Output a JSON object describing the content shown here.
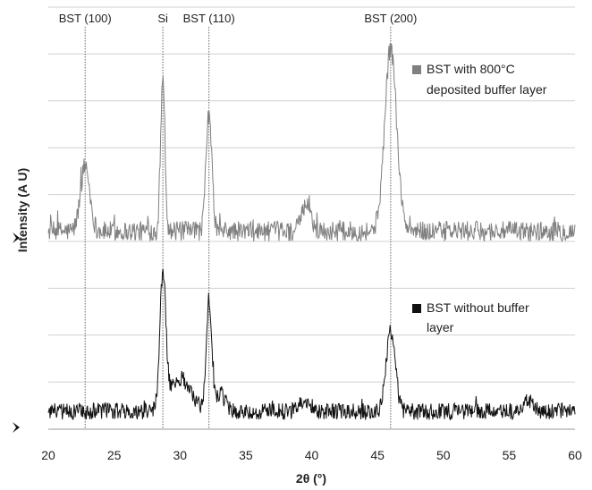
{
  "chart_data": {
    "type": "line",
    "title": "",
    "xlabel": "2θ (°)",
    "ylabel": "Intensity (A U)",
    "xlim": [
      20,
      60
    ],
    "xticks": [
      20,
      25,
      30,
      35,
      40,
      45,
      50,
      55,
      60
    ],
    "grid": true,
    "peak_labels": [
      {
        "label": "BST (100)",
        "x": 22.8
      },
      {
        "label": "Si",
        "x": 28.7
      },
      {
        "label": "BST (110)",
        "x": 32.2
      },
      {
        "label": "BST (200)",
        "x": 46.0
      }
    ],
    "baseline_markers": [
      "top-series-baseline",
      "bottom-series-baseline"
    ],
    "series": [
      {
        "name": "BST with 800°C deposited buffer layer",
        "color": "#808080",
        "baseline": 0.0,
        "noise": 0.055,
        "peaks": [
          {
            "x": 22.8,
            "height": 0.36,
            "width": 0.35
          },
          {
            "x": 28.7,
            "height": 0.86,
            "width": 0.16
          },
          {
            "x": 32.2,
            "height": 0.64,
            "width": 0.22
          },
          {
            "x": 39.6,
            "height": 0.14,
            "width": 0.35
          },
          {
            "x": 46.0,
            "height": 1.0,
            "width": 0.45
          }
        ]
      },
      {
        "name": "BST without buffer layer",
        "color": "#111111",
        "baseline": 0.0,
        "noise": 0.055,
        "peaks": [
          {
            "x": 28.7,
            "height": 0.88,
            "width": 0.22
          },
          {
            "x": 30.0,
            "height": 0.22,
            "width": 0.8
          },
          {
            "x": 32.2,
            "height": 0.72,
            "width": 0.2
          },
          {
            "x": 33.0,
            "height": 0.12,
            "width": 0.4
          },
          {
            "x": 39.5,
            "height": 0.08,
            "width": 0.4
          },
          {
            "x": 46.0,
            "height": 0.52,
            "width": 0.35
          },
          {
            "x": 56.5,
            "height": 0.08,
            "width": 0.3
          }
        ]
      }
    ]
  }
}
